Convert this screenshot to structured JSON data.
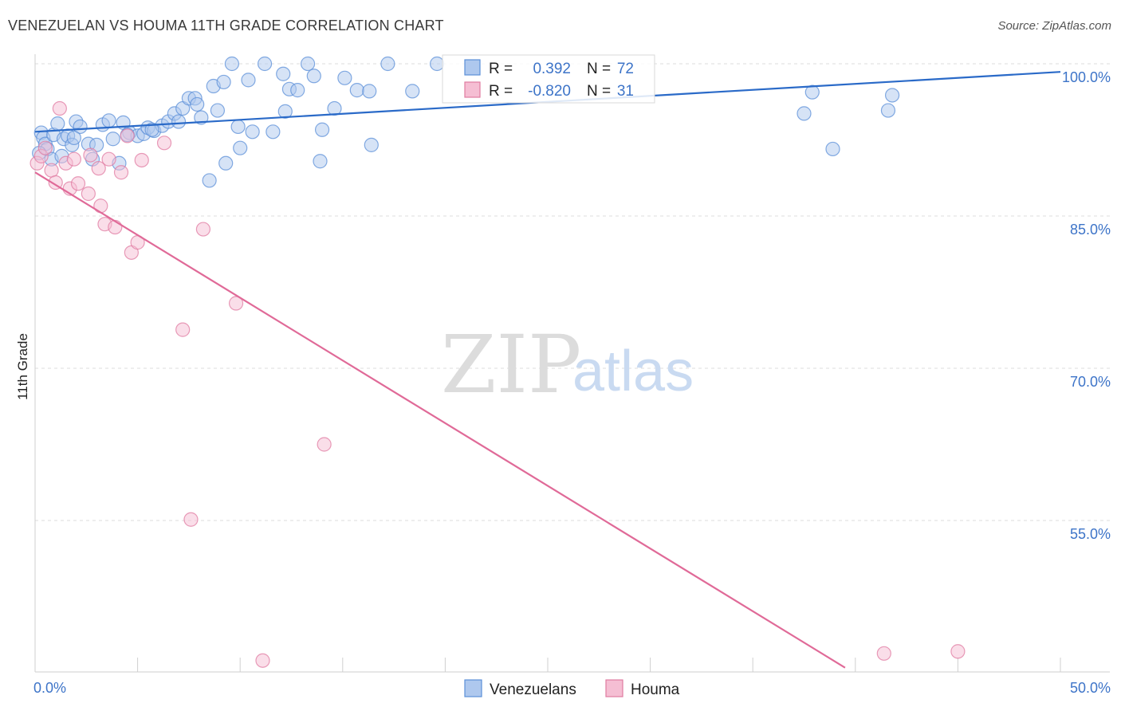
{
  "title": "VENEZUELAN VS HOUMA 11TH GRADE CORRELATION CHART",
  "source": "Source: ZipAtlas.com",
  "chart_data": {
    "type": "scatter",
    "title": "VENEZUELAN VS HOUMA 11TH GRADE CORRELATION CHART",
    "xlabel": "",
    "ylabel": "11th Grade",
    "xlim": [
      0,
      50
    ],
    "ylim": [
      40.5,
      101
    ],
    "x_tick_labels": [
      "0.0%",
      "50.0%"
    ],
    "y_ticks": [
      100,
      85,
      70,
      55
    ],
    "y_tick_labels": [
      "100.0%",
      "85.0%",
      "70.0%",
      "55.0%"
    ],
    "grid": true,
    "legend_position": "bottom-center",
    "stats_legend": [
      {
        "r_label": "R =",
        "r_value": "0.392",
        "n_label": "N =",
        "n_value": "72"
      },
      {
        "r_label": "R =",
        "r_value": "-0.820",
        "n_label": "N =",
        "n_value": "31"
      }
    ],
    "watermark": {
      "part1": "ZIP",
      "part2": "atlas"
    },
    "series": [
      {
        "name": "Venezuelans",
        "color": "#5b8fd8",
        "fill": "#aec8ee",
        "trend": {
          "x": [
            0,
            50
          ],
          "y": [
            93.3,
            99.2
          ]
        },
        "points": [
          [
            0.3,
            93.2
          ],
          [
            0.4,
            92.7
          ],
          [
            0.5,
            92.1
          ],
          [
            0.6,
            91.6
          ],
          [
            0.8,
            90.6
          ],
          [
            0.9,
            93.0
          ],
          [
            1.1,
            94.1
          ],
          [
            1.3,
            90.9
          ],
          [
            1.4,
            92.6
          ],
          [
            1.6,
            92.9
          ],
          [
            1.8,
            92.0
          ],
          [
            2.0,
            94.3
          ],
          [
            2.2,
            93.8
          ],
          [
            2.6,
            92.1
          ],
          [
            2.8,
            90.6
          ],
          [
            3.3,
            94.0
          ],
          [
            3.6,
            94.4
          ],
          [
            3.8,
            92.6
          ],
          [
            4.1,
            90.2
          ],
          [
            4.3,
            94.2
          ],
          [
            4.6,
            93.2
          ],
          [
            5.0,
            92.9
          ],
          [
            5.3,
            93.1
          ],
          [
            5.5,
            93.7
          ],
          [
            5.8,
            93.4
          ],
          [
            6.2,
            93.9
          ],
          [
            6.5,
            94.3
          ],
          [
            6.8,
            95.1
          ],
          [
            7.2,
            95.6
          ],
          [
            7.5,
            96.6
          ],
          [
            7.8,
            96.6
          ],
          [
            7.9,
            96.0
          ],
          [
            8.1,
            94.7
          ],
          [
            8.5,
            88.5
          ],
          [
            8.7,
            97.8
          ],
          [
            8.9,
            95.4
          ],
          [
            9.2,
            98.2
          ],
          [
            9.6,
            100.0
          ],
          [
            9.3,
            90.2
          ],
          [
            10.0,
            91.7
          ],
          [
            10.4,
            98.4
          ],
          [
            10.6,
            93.3
          ],
          [
            11.2,
            100.0
          ],
          [
            11.6,
            93.3
          ],
          [
            12.1,
            99.0
          ],
          [
            12.2,
            95.3
          ],
          [
            12.4,
            97.5
          ],
          [
            12.8,
            97.4
          ],
          [
            13.3,
            100.0
          ],
          [
            13.6,
            98.8
          ],
          [
            14.0,
            93.5
          ],
          [
            13.9,
            90.4
          ],
          [
            14.6,
            95.6
          ],
          [
            15.1,
            98.6
          ],
          [
            15.7,
            97.4
          ],
          [
            16.3,
            97.3
          ],
          [
            16.4,
            92.0
          ],
          [
            17.2,
            100.0
          ],
          [
            18.4,
            97.3
          ],
          [
            19.6,
            100.0
          ],
          [
            37.5,
            95.1
          ],
          [
            37.9,
            97.2
          ],
          [
            38.9,
            91.6
          ],
          [
            41.6,
            95.4
          ],
          [
            41.8,
            96.9
          ],
          [
            0.2,
            91.2
          ],
          [
            1.9,
            92.7
          ],
          [
            3.0,
            92.0
          ],
          [
            4.5,
            93.0
          ],
          [
            5.7,
            93.5
          ],
          [
            7.0,
            94.3
          ],
          [
            9.9,
            93.8
          ]
        ]
      },
      {
        "name": "Houma",
        "color": "#e07ba1",
        "fill": "#f5bed3",
        "trend": {
          "x": [
            0,
            39.5
          ],
          "y": [
            89.3,
            40.5
          ]
        },
        "points": [
          [
            0.1,
            90.2
          ],
          [
            0.3,
            90.9
          ],
          [
            0.5,
            91.7
          ],
          [
            0.8,
            89.5
          ],
          [
            1.0,
            88.3
          ],
          [
            1.2,
            95.6
          ],
          [
            1.5,
            90.2
          ],
          [
            1.7,
            87.7
          ],
          [
            1.9,
            90.6
          ],
          [
            2.1,
            88.2
          ],
          [
            2.6,
            87.2
          ],
          [
            2.7,
            91.0
          ],
          [
            3.1,
            89.7
          ],
          [
            3.2,
            86.0
          ],
          [
            3.4,
            84.2
          ],
          [
            3.6,
            90.6
          ],
          [
            3.9,
            83.9
          ],
          [
            4.2,
            89.3
          ],
          [
            4.5,
            92.9
          ],
          [
            4.7,
            81.4
          ],
          [
            5.0,
            82.4
          ],
          [
            5.2,
            90.5
          ],
          [
            6.3,
            92.2
          ],
          [
            7.2,
            73.8
          ],
          [
            7.6,
            55.1
          ],
          [
            8.2,
            83.7
          ],
          [
            9.8,
            76.4
          ],
          [
            11.1,
            41.2
          ],
          [
            14.1,
            62.5
          ],
          [
            41.4,
            41.9
          ],
          [
            45.0,
            42.1
          ]
        ]
      }
    ]
  }
}
